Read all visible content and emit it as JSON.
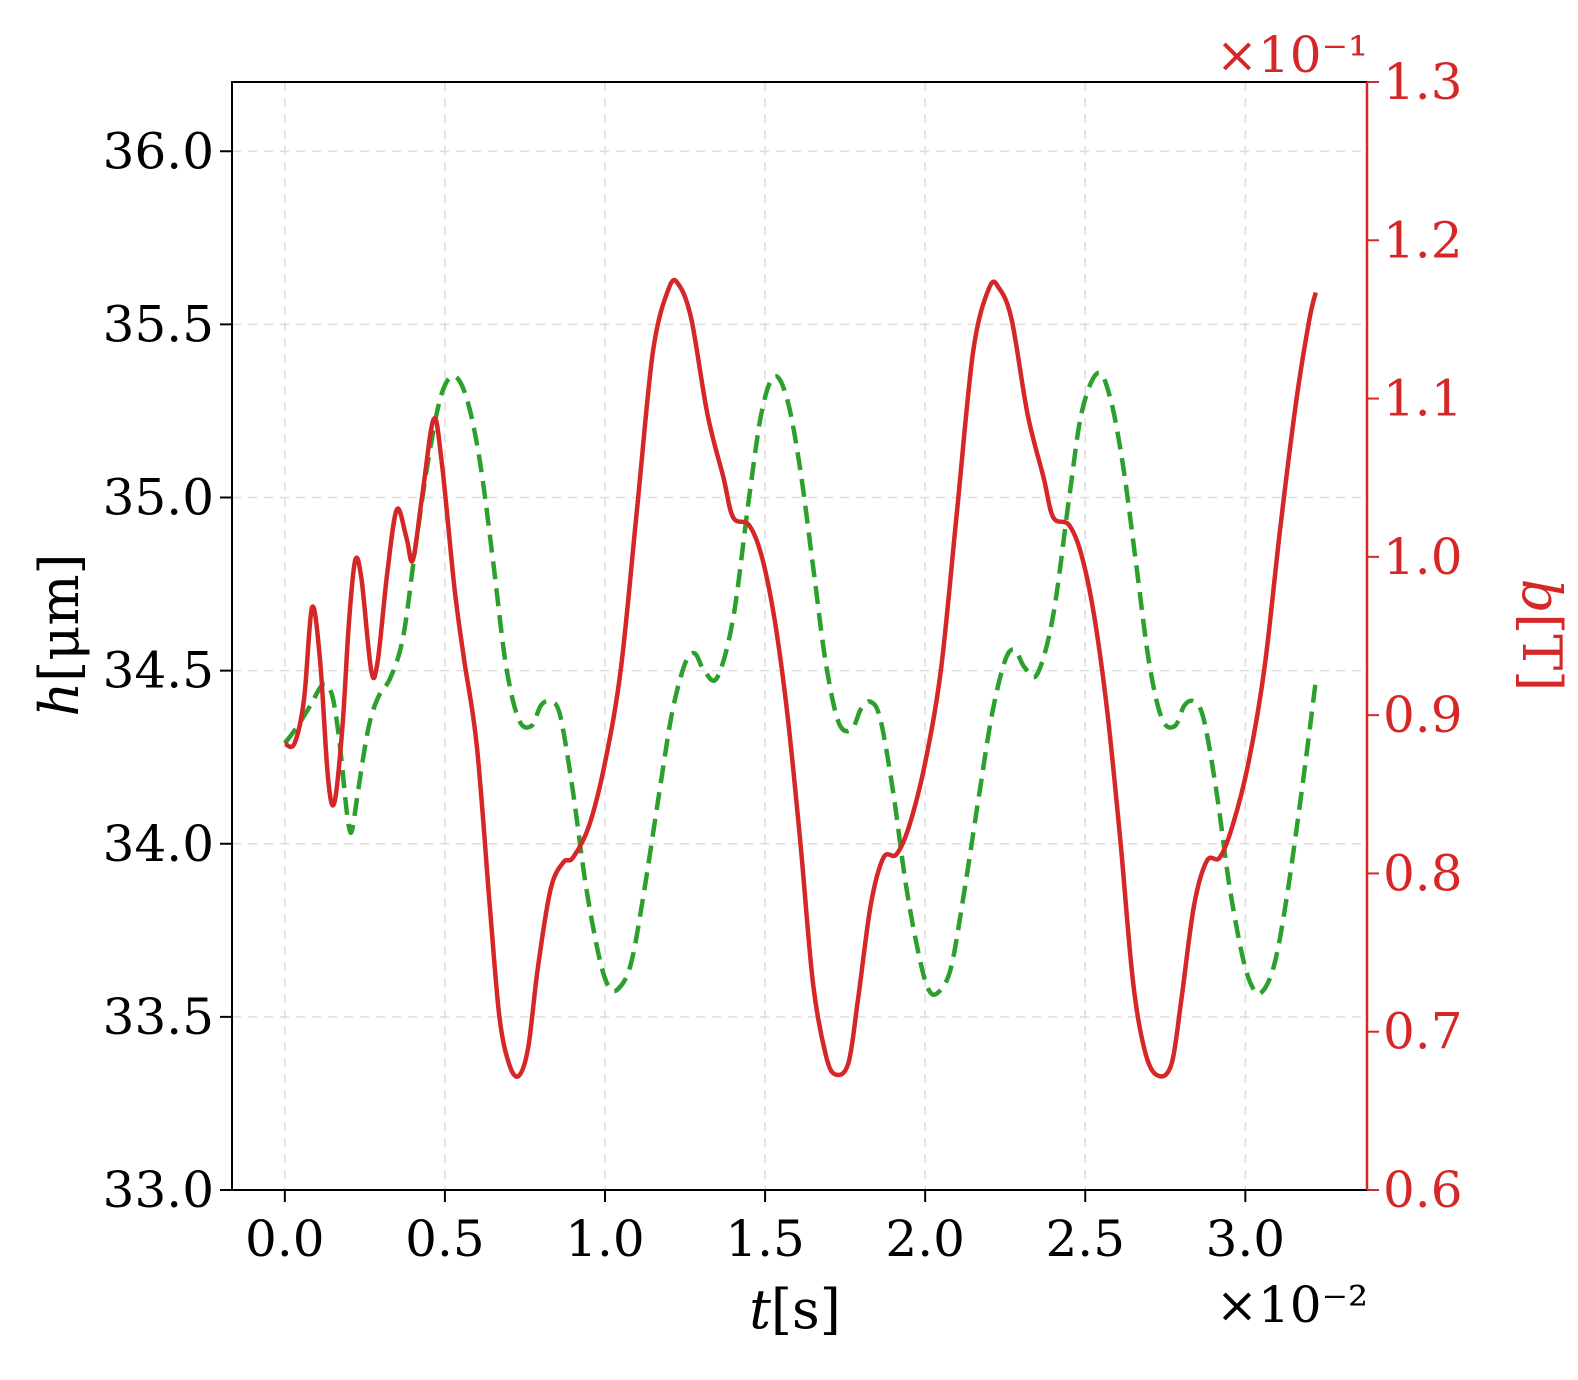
{
  "chart_data": {
    "type": "line",
    "xlabel_var": "t",
    "xlabel_unit": "[s]",
    "ylabel_var": "h",
    "ylabel_unit": "[μm]",
    "y2label_var": "b",
    "y2label_unit": "[T]",
    "x_multiplier": "×10⁻²",
    "y2_multiplier": "×10⁻¹",
    "xlim": [
      -0.165,
      3.38
    ],
    "ylim": [
      33.0,
      36.2
    ],
    "y2lim": [
      0.6,
      1.3
    ],
    "x_ticks": [
      "0.0",
      "0.5",
      "1.0",
      "1.5",
      "2.0",
      "2.5",
      "3.0"
    ],
    "x_tick_values": [
      0.0,
      0.5,
      1.0,
      1.5,
      2.0,
      2.5,
      3.0
    ],
    "y_ticks": [
      "33.0",
      "33.5",
      "34.0",
      "34.5",
      "35.0",
      "35.5",
      "36.0"
    ],
    "y_tick_values": [
      33.0,
      33.5,
      34.0,
      34.5,
      35.0,
      35.5,
      36.0
    ],
    "y2_ticks": [
      "0.6",
      "0.7",
      "0.8",
      "0.9",
      "1.0",
      "1.1",
      "1.2",
      "1.3"
    ],
    "y2_tick_values": [
      0.6,
      0.7,
      0.8,
      0.9,
      1.0,
      1.1,
      1.2,
      1.3
    ],
    "grid": true,
    "colors": {
      "h_series": "#2ca02c",
      "b_series": "#d62728",
      "axes": "#000000",
      "grid": "#dddddd"
    },
    "series": [
      {
        "axis": "left",
        "style": "dashed",
        "color": "#2ca02c",
        "points": [
          [
            0.0,
            34.29
          ],
          [
            0.04,
            34.34
          ],
          [
            0.08,
            34.4
          ],
          [
            0.11,
            34.45
          ],
          [
            0.13,
            34.46
          ],
          [
            0.15,
            34.42
          ],
          [
            0.17,
            34.3
          ],
          [
            0.19,
            34.12
          ],
          [
            0.2,
            34.05
          ],
          [
            0.21,
            34.04
          ],
          [
            0.23,
            34.16
          ],
          [
            0.26,
            34.33
          ],
          [
            0.29,
            34.42
          ],
          [
            0.33,
            34.48
          ],
          [
            0.37,
            34.6
          ],
          [
            0.41,
            34.87
          ],
          [
            0.45,
            35.12
          ],
          [
            0.49,
            35.3
          ],
          [
            0.53,
            35.35
          ],
          [
            0.57,
            35.28
          ],
          [
            0.61,
            35.1
          ],
          [
            0.65,
            34.82
          ],
          [
            0.69,
            34.52
          ],
          [
            0.73,
            34.36
          ],
          [
            0.77,
            34.34
          ],
          [
            0.8,
            34.4
          ],
          [
            0.83,
            34.41
          ],
          [
            0.86,
            34.37
          ],
          [
            0.9,
            34.15
          ],
          [
            0.94,
            33.88
          ],
          [
            0.98,
            33.68
          ],
          [
            1.01,
            33.59
          ],
          [
            1.04,
            33.58
          ],
          [
            1.08,
            33.65
          ],
          [
            1.12,
            33.85
          ],
          [
            1.17,
            34.15
          ],
          [
            1.21,
            34.38
          ],
          [
            1.25,
            34.52
          ],
          [
            1.28,
            34.55
          ],
          [
            1.31,
            34.5
          ],
          [
            1.35,
            34.48
          ],
          [
            1.4,
            34.65
          ],
          [
            1.45,
            35.0
          ],
          [
            1.49,
            35.25
          ],
          [
            1.53,
            35.35
          ],
          [
            1.57,
            35.28
          ],
          [
            1.61,
            35.08
          ],
          [
            1.65,
            34.8
          ],
          [
            1.69,
            34.52
          ],
          [
            1.73,
            34.35
          ],
          [
            1.77,
            34.33
          ],
          [
            1.8,
            34.39
          ],
          [
            1.83,
            34.41
          ],
          [
            1.86,
            34.36
          ],
          [
            1.9,
            34.15
          ],
          [
            1.94,
            33.88
          ],
          [
            1.98,
            33.68
          ],
          [
            2.01,
            33.58
          ],
          [
            2.04,
            33.57
          ],
          [
            2.08,
            33.64
          ],
          [
            2.12,
            33.85
          ],
          [
            2.17,
            34.15
          ],
          [
            2.21,
            34.38
          ],
          [
            2.25,
            34.53
          ],
          [
            2.28,
            34.56
          ],
          [
            2.31,
            34.51
          ],
          [
            2.35,
            34.49
          ],
          [
            2.4,
            34.66
          ],
          [
            2.45,
            35.0
          ],
          [
            2.49,
            35.25
          ],
          [
            2.54,
            35.36
          ],
          [
            2.58,
            35.28
          ],
          [
            2.62,
            35.08
          ],
          [
            2.66,
            34.8
          ],
          [
            2.7,
            34.52
          ],
          [
            2.74,
            34.36
          ],
          [
            2.78,
            34.34
          ],
          [
            2.81,
            34.4
          ],
          [
            2.84,
            34.41
          ],
          [
            2.87,
            34.36
          ],
          [
            2.91,
            34.15
          ],
          [
            2.95,
            33.88
          ],
          [
            2.99,
            33.68
          ],
          [
            3.02,
            33.59
          ],
          [
            3.05,
            33.57
          ],
          [
            3.09,
            33.65
          ],
          [
            3.13,
            33.85
          ],
          [
            3.18,
            34.18
          ],
          [
            3.22,
            34.47
          ]
        ]
      },
      {
        "axis": "right",
        "style": "solid",
        "color": "#d62728",
        "points": [
          [
            0.0,
            0.882
          ],
          [
            0.03,
            0.882
          ],
          [
            0.06,
            0.91
          ],
          [
            0.085,
            0.968
          ],
          [
            0.11,
            0.935
          ],
          [
            0.135,
            0.86
          ],
          [
            0.155,
            0.845
          ],
          [
            0.18,
            0.893
          ],
          [
            0.2,
            0.958
          ],
          [
            0.22,
            0.998
          ],
          [
            0.24,
            0.985
          ],
          [
            0.27,
            0.928
          ],
          [
            0.29,
            0.934
          ],
          [
            0.32,
            0.99
          ],
          [
            0.35,
            1.03
          ],
          [
            0.38,
            1.012
          ],
          [
            0.4,
            0.998
          ],
          [
            0.43,
            1.04
          ],
          [
            0.465,
            1.087
          ],
          [
            0.49,
            1.06
          ],
          [
            0.53,
            0.98
          ],
          [
            0.56,
            0.935
          ],
          [
            0.6,
            0.88
          ],
          [
            0.64,
            0.78
          ],
          [
            0.67,
            0.71
          ],
          [
            0.7,
            0.68
          ],
          [
            0.73,
            0.672
          ],
          [
            0.76,
            0.69
          ],
          [
            0.79,
            0.74
          ],
          [
            0.83,
            0.79
          ],
          [
            0.87,
            0.807
          ],
          [
            0.9,
            0.81
          ],
          [
            0.95,
            0.83
          ],
          [
            1.0,
            0.87
          ],
          [
            1.05,
            0.93
          ],
          [
            1.1,
            1.03
          ],
          [
            1.15,
            1.13
          ],
          [
            1.2,
            1.17
          ],
          [
            1.23,
            1.172
          ],
          [
            1.27,
            1.15
          ],
          [
            1.32,
            1.09
          ],
          [
            1.37,
            1.05
          ],
          [
            1.4,
            1.025
          ],
          [
            1.45,
            1.02
          ],
          [
            1.49,
            1.0
          ],
          [
            1.53,
            0.96
          ],
          [
            1.57,
            0.9
          ],
          [
            1.61,
            0.82
          ],
          [
            1.65,
            0.73
          ],
          [
            1.69,
            0.685
          ],
          [
            1.72,
            0.673
          ],
          [
            1.76,
            0.68
          ],
          [
            1.79,
            0.72
          ],
          [
            1.83,
            0.78
          ],
          [
            1.87,
            0.81
          ],
          [
            1.91,
            0.812
          ],
          [
            1.95,
            0.83
          ],
          [
            2.0,
            0.87
          ],
          [
            2.05,
            0.93
          ],
          [
            2.1,
            1.03
          ],
          [
            2.15,
            1.13
          ],
          [
            2.2,
            1.17
          ],
          [
            2.23,
            1.17
          ],
          [
            2.27,
            1.15
          ],
          [
            2.32,
            1.09
          ],
          [
            2.37,
            1.05
          ],
          [
            2.4,
            1.025
          ],
          [
            2.45,
            1.02
          ],
          [
            2.49,
            1.0
          ],
          [
            2.53,
            0.96
          ],
          [
            2.57,
            0.9
          ],
          [
            2.61,
            0.82
          ],
          [
            2.65,
            0.73
          ],
          [
            2.69,
            0.685
          ],
          [
            2.73,
            0.672
          ],
          [
            2.77,
            0.68
          ],
          [
            2.8,
            0.72
          ],
          [
            2.84,
            0.78
          ],
          [
            2.88,
            0.808
          ],
          [
            2.92,
            0.81
          ],
          [
            2.96,
            0.83
          ],
          [
            3.01,
            0.87
          ],
          [
            3.06,
            0.93
          ],
          [
            3.11,
            1.02
          ],
          [
            3.16,
            1.1
          ],
          [
            3.2,
            1.15
          ],
          [
            3.22,
            1.167
          ]
        ]
      }
    ]
  }
}
